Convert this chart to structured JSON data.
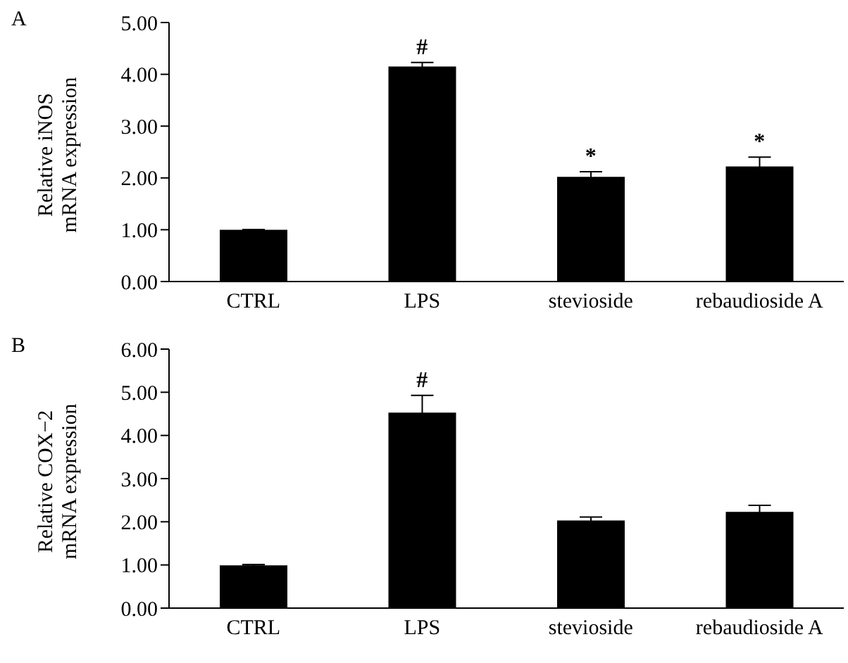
{
  "chart_data": [
    {
      "type": "bar",
      "title": "A",
      "ylabel": "Relative iNOS\nmRNA expression",
      "categories": [
        "CTRL",
        "LPS",
        "stevioside",
        "rebaudioside A"
      ],
      "values": [
        1.0,
        4.15,
        2.02,
        2.22
      ],
      "errors": [
        null,
        0.08,
        0.1,
        0.18
      ],
      "color": "#000000",
      "ylim": [
        0,
        5
      ],
      "yticks": [
        {
          "value": 0,
          "label": "0.00"
        },
        {
          "value": 1,
          "label": "1.00"
        },
        {
          "value": 2,
          "label": "2.00"
        },
        {
          "value": 3,
          "label": "3.00"
        },
        {
          "value": 4,
          "label": "4.00"
        },
        {
          "value": 5,
          "label": "5.00"
        }
      ],
      "annotations": [
        {
          "text": "#",
          "x": "LPS",
          "y": 4.15
        },
        {
          "text": "*",
          "x": "stevioside",
          "y": 2.02
        },
        {
          "text": "*",
          "x": "rebaudioside A",
          "y": 2.22
        }
      ]
    },
    {
      "type": "bar",
      "title": "B",
      "ylabel": "Relative COX−2\nmRNA expression",
      "categories": [
        "CTRL",
        "LPS",
        "stevioside",
        "rebaudioside A"
      ],
      "values": [
        0.99,
        4.53,
        2.03,
        2.23
      ],
      "errors": [
        0.02,
        0.4,
        0.08,
        0.15
      ],
      "color": "#000000",
      "ylim": [
        0,
        6
      ],
      "yticks": [
        {
          "value": 0,
          "label": "0.00"
        },
        {
          "value": 1,
          "label": "1.00"
        },
        {
          "value": 2,
          "label": "2.00"
        },
        {
          "value": 3,
          "label": "3.00"
        },
        {
          "value": 4,
          "label": "4.00"
        },
        {
          "value": 5,
          "label": "5.00"
        },
        {
          "value": 6,
          "label": "6.00"
        }
      ],
      "annotations": [
        {
          "text": "#",
          "x": "LPS",
          "y": 4.53
        }
      ]
    }
  ]
}
